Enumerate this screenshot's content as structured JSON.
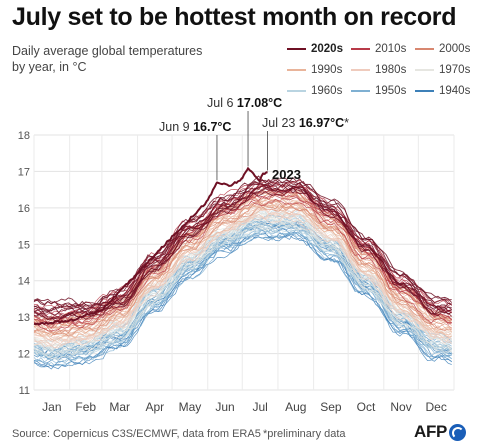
{
  "header": {
    "title": "July set to be hottest month on record",
    "subtitle_line1": "Daily average global temperatures",
    "subtitle_line2": "by year, in °C"
  },
  "legend": {
    "items": [
      {
        "label": "2020s",
        "color": "#6e1024",
        "bold": true
      },
      {
        "label": "2010s",
        "color": "#b83a48"
      },
      {
        "label": "2000s",
        "color": "#d88770"
      },
      {
        "label": "1990s",
        "color": "#e9b49a"
      },
      {
        "label": "1980s",
        "color": "#efcbbd"
      },
      {
        "label": "1970s",
        "color": "#e6e6e1"
      },
      {
        "label": "1960s",
        "color": "#b9d4e1"
      },
      {
        "label": "1950s",
        "color": "#7fb0d2"
      },
      {
        "label": "1940s",
        "color": "#3d80b8"
      }
    ]
  },
  "annotations": {
    "jun9_date": "Jun 9 ",
    "jun9_value": "16.7°C",
    "jul6_date": "Jul 6 ",
    "jul6_value": "17.08°C",
    "jul23_date": "Jul 23 ",
    "jul23_value": "16.97°C",
    "jul23_note": "*",
    "year_label": "2023"
  },
  "footer": {
    "source": "Source: Copernicus C3S/ECMWF, data from ERA5",
    "note": "*preliminary data",
    "logo_text": "AFP"
  },
  "chart_data": {
    "type": "line",
    "title": "July set to be hottest month on record",
    "ylabel": "Daily average global temperatures by year, in °C",
    "ylim": [
      11,
      18
    ],
    "yticks": [
      11,
      12,
      13,
      14,
      15,
      16,
      17,
      18
    ],
    "x_domain": [
      "Jan 1",
      "Dec 31"
    ],
    "months": [
      "Jan",
      "Feb",
      "Mar",
      "Apr",
      "May",
      "Jun",
      "Jul",
      "Aug",
      "Sep",
      "Oct",
      "Nov",
      "Dec"
    ],
    "grid": true,
    "legend_position": "top-right",
    "series": [
      {
        "name": "1940s",
        "color": "#3d80b8",
        "monthly_values": [
          11.9,
          12.0,
          12.4,
          13.4,
          14.3,
          15.0,
          15.4,
          15.4,
          14.8,
          13.8,
          12.8,
          12.1
        ]
      },
      {
        "name": "1950s",
        "color": "#7fb0d2",
        "monthly_values": [
          12.0,
          12.1,
          12.5,
          13.5,
          14.4,
          15.1,
          15.5,
          15.5,
          14.9,
          13.9,
          12.9,
          12.2
        ]
      },
      {
        "name": "1960s",
        "color": "#b9d4e1",
        "monthly_values": [
          12.1,
          12.2,
          12.6,
          13.6,
          14.5,
          15.2,
          15.6,
          15.6,
          15.0,
          14.0,
          13.0,
          12.3
        ]
      },
      {
        "name": "1970s",
        "color": "#e6e6e1",
        "monthly_values": [
          12.2,
          12.3,
          12.7,
          13.7,
          14.6,
          15.3,
          15.7,
          15.7,
          15.1,
          14.1,
          13.1,
          12.4
        ]
      },
      {
        "name": "1980s",
        "color": "#efcbbd",
        "monthly_values": [
          12.4,
          12.5,
          12.9,
          13.9,
          14.8,
          15.5,
          15.9,
          15.9,
          15.3,
          14.3,
          13.3,
          12.6
        ]
      },
      {
        "name": "1990s",
        "color": "#e9b49a",
        "monthly_values": [
          12.6,
          12.7,
          13.1,
          14.1,
          15.0,
          15.7,
          16.1,
          16.1,
          15.5,
          14.5,
          13.5,
          12.8
        ]
      },
      {
        "name": "2000s",
        "color": "#d88770",
        "monthly_values": [
          12.8,
          12.9,
          13.3,
          14.3,
          15.2,
          15.9,
          16.3,
          16.3,
          15.7,
          14.7,
          13.7,
          13.0
        ]
      },
      {
        "name": "2010s",
        "color": "#b83a48",
        "monthly_values": [
          13.0,
          13.1,
          13.5,
          14.5,
          15.4,
          16.1,
          16.5,
          16.5,
          15.9,
          14.9,
          13.9,
          13.2
        ]
      },
      {
        "name": "2020s",
        "color": "#6e1024",
        "monthly_values": [
          13.2,
          13.2,
          13.5,
          14.5,
          15.4,
          16.1,
          16.6,
          16.6,
          16.0,
          15.0,
          14.0,
          13.3
        ]
      },
      {
        "name": "2023",
        "color": "#6e1024",
        "points": [
          [
            "Jan 1",
            12.8
          ],
          [
            "Feb 1",
            12.9
          ],
          [
            "Mar 1",
            13.2
          ],
          [
            "Apr 1",
            14.2
          ],
          [
            "May 1",
            15.2
          ],
          [
            "Jun 1",
            16.2
          ],
          [
            "Jun 9",
            16.7
          ],
          [
            "Jun 20",
            16.6
          ],
          [
            "Jul 1",
            16.8
          ],
          [
            "Jul 6",
            17.08
          ],
          [
            "Jul 12",
            16.9
          ],
          [
            "Jul 16",
            16.75
          ],
          [
            "Jul 19",
            16.92
          ],
          [
            "Jul 23",
            16.97
          ]
        ]
      }
    ]
  }
}
